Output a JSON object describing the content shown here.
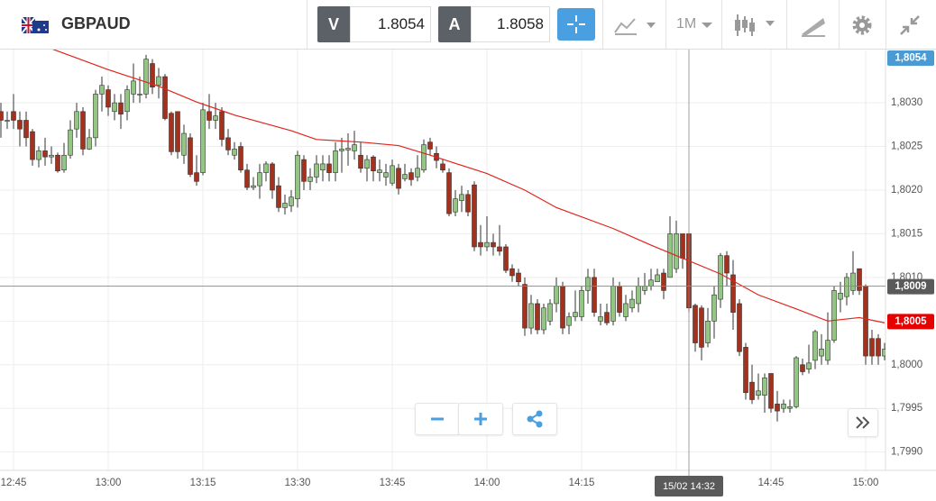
{
  "header": {
    "symbol": "GBPAUD",
    "bid_label": "V",
    "bid": "1.8054",
    "ask_label": "A",
    "ask": "1.8058",
    "timeframe": "1M"
  },
  "chart_data": {
    "type": "candlestick",
    "up_color": "#93c682",
    "down_color": "#a2311e",
    "categories": [
      null,
      null,
      "12:45",
      null,
      null,
      null,
      null,
      null,
      null,
      null,
      null,
      null,
      null,
      null,
      null,
      null,
      null,
      "13:00",
      null,
      null,
      null,
      null,
      null,
      null,
      null,
      null,
      null,
      null,
      null,
      null,
      null,
      null,
      "13:15",
      null,
      null,
      null,
      null,
      null,
      null,
      null,
      null,
      null,
      null,
      null,
      null,
      null,
      null,
      "13:30",
      null,
      null,
      null,
      null,
      null,
      null,
      null,
      null,
      null,
      null,
      null,
      null,
      null,
      null,
      "13:45",
      null,
      null,
      null,
      null,
      null,
      null,
      null,
      null,
      null,
      null,
      null,
      null,
      null,
      null,
      "14:00",
      null,
      null,
      null,
      null,
      null,
      null,
      null,
      null,
      null,
      null,
      null,
      null,
      null,
      null,
      "14:15",
      null,
      null,
      null,
      null,
      null,
      null,
      null,
      null,
      null,
      null,
      null,
      null,
      null,
      null,
      "14:30",
      null,
      null,
      null,
      null,
      null,
      null,
      null,
      null,
      null,
      null,
      null,
      null,
      null,
      null,
      "14:45",
      null,
      null,
      null,
      null,
      null,
      null,
      null,
      null,
      null,
      null,
      null,
      null,
      null,
      null,
      "15:00",
      null,
      null,
      null
    ],
    "ohlc": [
      [
        1.8029,
        1.803,
        1.8026,
        1.8028
      ],
      [
        1.8028,
        1.8029,
        1.8027,
        1.8028
      ],
      [
        1.8029,
        1.8031,
        1.8027,
        1.8028
      ],
      [
        1.8028,
        1.8029,
        1.8025,
        1.8027
      ],
      [
        1.8028,
        1.8029,
        1.8025,
        1.8026
      ],
      [
        1.80267,
        1.8027,
        1.80228,
        1.80235
      ],
      [
        1.80235,
        1.8025,
        1.80226,
        1.80245
      ],
      [
        1.80245,
        1.8026,
        1.80228,
        1.80238
      ],
      [
        1.80238,
        1.8025,
        1.8023,
        1.8024
      ],
      [
        1.8024,
        1.80243,
        1.8022,
        1.80222
      ],
      [
        1.80223,
        1.80254,
        1.8022,
        1.8024
      ],
      [
        1.8024,
        1.8028,
        1.80236,
        1.80269
      ],
      [
        1.8027,
        1.803,
        1.8026,
        1.8029
      ],
      [
        1.8029,
        1.80295,
        1.8024,
        1.80247
      ],
      [
        1.80247,
        1.8027,
        1.80246,
        1.8026
      ],
      [
        1.8026,
        1.80315,
        1.8025,
        1.8031
      ],
      [
        1.8031,
        1.8033,
        1.8029,
        1.8032
      ],
      [
        1.80315,
        1.8032,
        1.80285,
        1.80295
      ],
      [
        1.8029,
        1.8031,
        1.8028,
        1.803
      ],
      [
        1.803,
        1.8031,
        1.8027,
        1.80287
      ],
      [
        1.8029,
        1.8032,
        1.8028,
        1.80315
      ],
      [
        1.8031,
        1.80345,
        1.803,
        1.80325
      ],
      [
        1.8031,
        1.8033,
        1.803,
        1.8031
      ],
      [
        1.8031,
        1.80355,
        1.80305,
        1.8035
      ],
      [
        1.80345,
        1.8035,
        1.8031,
        1.80318
      ],
      [
        1.8032,
        1.8034,
        1.80305,
        1.8033
      ],
      [
        1.8033,
        1.80333,
        1.8028,
        1.80282
      ],
      [
        1.80288,
        1.8029,
        1.8024,
        1.80244
      ],
      [
        1.8029,
        1.8029,
        1.80236,
        1.80244
      ],
      [
        1.8024,
        1.80275,
        1.8023,
        1.80265
      ],
      [
        1.8026,
        1.80265,
        1.80215,
        1.80218
      ],
      [
        1.8022,
        1.8024,
        1.80205,
        1.8021
      ],
      [
        1.8022,
        1.803,
        1.80217,
        1.80292
      ],
      [
        1.8029,
        1.8031,
        1.8027,
        1.8028
      ],
      [
        1.8028,
        1.803,
        1.8027,
        1.80285
      ],
      [
        1.8029,
        1.80295,
        1.8025,
        1.80258
      ],
      [
        1.8026,
        1.8027,
        1.8024,
        1.80246
      ],
      [
        1.8024,
        1.80255,
        1.80235,
        1.80247
      ],
      [
        1.8025,
        1.80255,
        1.8022,
        1.80223
      ],
      [
        1.80223,
        1.8023,
        1.802,
        1.80203
      ],
      [
        1.80203,
        1.80215,
        1.802,
        1.80205
      ],
      [
        1.80205,
        1.8023,
        1.8019,
        1.8022
      ],
      [
        1.8022,
        1.80233,
        1.8021,
        1.8023
      ],
      [
        1.8023,
        1.80232,
        1.8019,
        1.802
      ],
      [
        1.80205,
        1.80215,
        1.80175,
        1.8018
      ],
      [
        1.8018,
        1.80195,
        1.80172,
        1.80185
      ],
      [
        1.80182,
        1.802,
        1.80175,
        1.80192
      ],
      [
        1.8019,
        1.80245,
        1.8018,
        1.8024
      ],
      [
        1.80235,
        1.8024,
        1.802,
        1.8021
      ],
      [
        1.8021,
        1.80225,
        1.802,
        1.80215
      ],
      [
        1.80215,
        1.8024,
        1.80208,
        1.8023
      ],
      [
        1.80223,
        1.8024,
        1.8021,
        1.8023
      ],
      [
        1.8023,
        1.8024,
        1.8021,
        1.8022
      ],
      [
        1.8022,
        1.80255,
        1.8021,
        1.80245
      ],
      [
        1.80245,
        1.8026,
        1.8022,
        1.80247
      ],
      [
        1.80246,
        1.80265,
        1.80228,
        1.80248
      ],
      [
        1.80245,
        1.80268,
        1.80235,
        1.80252
      ],
      [
        1.8024,
        1.80255,
        1.8022,
        1.80225
      ],
      [
        1.80225,
        1.8024,
        1.8021,
        1.80235
      ],
      [
        1.80238,
        1.8024,
        1.8021,
        1.80222
      ],
      [
        1.8022,
        1.80235,
        1.8021,
        1.80223
      ],
      [
        1.80215,
        1.8023,
        1.80205,
        1.8022
      ],
      [
        1.80208,
        1.80235,
        1.80205,
        1.80228
      ],
      [
        1.80225,
        1.8023,
        1.80195,
        1.80202
      ],
      [
        1.80213,
        1.8023,
        1.8021,
        1.80218
      ],
      [
        1.8022,
        1.80225,
        1.80205,
        1.80212
      ],
      [
        1.80215,
        1.8024,
        1.8021,
        1.80225
      ],
      [
        1.80223,
        1.80258,
        1.8022,
        1.80252
      ],
      [
        1.80255,
        1.8026,
        1.8024,
        1.80247
      ],
      [
        1.80242,
        1.8025,
        1.80225,
        1.80234
      ],
      [
        1.8023,
        1.80235,
        1.8022,
        1.80223
      ],
      [
        1.8022,
        1.80225,
        1.8017,
        1.80173
      ],
      [
        1.80175,
        1.802,
        1.8017,
        1.8019
      ],
      [
        1.80188,
        1.80205,
        1.80175,
        1.80195
      ],
      [
        1.80195,
        1.802,
        1.8017,
        1.80175
      ],
      [
        1.80206,
        1.8021,
        1.8013,
        1.80135
      ],
      [
        1.8014,
        1.8016,
        1.80125,
        1.80135
      ],
      [
        1.80135,
        1.8017,
        1.8013,
        1.8014
      ],
      [
        1.8014,
        1.8015,
        1.80125,
        1.80135
      ],
      [
        1.80135,
        1.8016,
        1.80125,
        1.8013
      ],
      [
        1.80135,
        1.80138,
        1.80105,
        1.80108
      ],
      [
        1.8011,
        1.80115,
        1.80095,
        1.80102
      ],
      [
        1.80105,
        1.8011,
        1.8009,
        1.80095
      ],
      [
        1.80092,
        1.801,
        1.80033,
        1.80042
      ],
      [
        1.80042,
        1.8008,
        1.80035,
        1.8007
      ],
      [
        1.8007,
        1.80075,
        1.80035,
        1.8004
      ],
      [
        1.8004,
        1.8007,
        1.80035,
        1.80065
      ],
      [
        1.8005,
        1.80075,
        1.80045,
        1.8007
      ],
      [
        1.8007,
        1.801,
        1.8006,
        1.8009
      ],
      [
        1.8009,
        1.80095,
        1.80035,
        1.80042
      ],
      [
        1.80045,
        1.8006,
        1.80035,
        1.80055
      ],
      [
        1.80055,
        1.80085,
        1.8005,
        1.8006
      ],
      [
        1.80055,
        1.8009,
        1.8005,
        1.80085
      ],
      [
        1.80085,
        1.8011,
        1.8007,
        1.801
      ],
      [
        1.801,
        1.8011,
        1.80055,
        1.8006
      ],
      [
        1.8005,
        1.8007,
        1.80045,
        1.80055
      ],
      [
        1.8006,
        1.8007,
        1.80045,
        1.80048
      ],
      [
        1.8005,
        1.801,
        1.80045,
        1.8009
      ],
      [
        1.8009,
        1.80095,
        1.80055,
        1.8006
      ],
      [
        1.80055,
        1.8008,
        1.8005,
        1.8007
      ],
      [
        1.80065,
        1.80085,
        1.8006,
        1.80075
      ],
      [
        1.8007,
        1.801,
        1.8006,
        1.8009
      ],
      [
        1.80085,
        1.80105,
        1.8008,
        1.8009
      ],
      [
        1.8009,
        1.8011,
        1.80085,
        1.80097
      ],
      [
        1.80095,
        1.8011,
        1.80095,
        1.80103
      ],
      [
        1.80105,
        1.8011,
        1.80075,
        1.80085
      ],
      [
        1.801,
        1.8017,
        1.801,
        1.8015
      ],
      [
        1.8011,
        1.80165,
        1.80105,
        1.8015
      ],
      [
        1.8015,
        1.8015,
        1.8011,
        1.80122
      ],
      [
        1.8015,
        1.8015,
        1.8006,
        1.80065
      ],
      [
        1.80068,
        1.8007,
        1.80015,
        1.80025
      ],
      [
        1.80065,
        1.80068,
        1.80005,
        1.8002
      ],
      [
        1.80025,
        1.80065,
        1.8002,
        1.8005
      ],
      [
        1.8005,
        1.8009,
        1.8003,
        1.8008
      ],
      [
        1.80075,
        1.80128,
        1.80065,
        1.80125
      ],
      [
        1.80125,
        1.8013,
        1.8009,
        1.80105
      ],
      [
        1.80103,
        1.8012,
        1.8004,
        1.8006
      ],
      [
        1.8007,
        1.80075,
        1.8001,
        1.80015
      ],
      [
        1.8002,
        1.80025,
        1.7996,
        1.79968
      ],
      [
        1.7998,
        1.8,
        1.79955,
        1.7996
      ],
      [
        1.79965,
        1.7999,
        1.7996,
        1.7997
      ],
      [
        1.79965,
        1.7999,
        1.79945,
        1.79985
      ],
      [
        1.7999,
        1.7999,
        1.79945,
        1.7995
      ],
      [
        1.79955,
        1.7997,
        1.79935,
        1.79947
      ],
      [
        1.7995,
        1.7996,
        1.79945,
        1.79955
      ],
      [
        1.7995,
        1.7996,
        1.79945,
        1.79952
      ],
      [
        1.79952,
        1.8001,
        1.7995,
        1.80008
      ],
      [
        1.8,
        1.80007,
        1.79988,
        1.79992
      ],
      [
        1.79995,
        1.80023,
        1.7999,
        1.80002
      ],
      [
        1.80005,
        1.8004,
        1.79995,
        1.80038
      ],
      [
        1.8001,
        1.80035,
        1.8,
        1.80018
      ],
      [
        1.80005,
        1.8006,
        1.8,
        1.80028
      ],
      [
        1.80028,
        1.8009,
        1.80025,
        1.80085
      ],
      [
        1.80075,
        1.80095,
        1.8006,
        1.80082
      ],
      [
        1.80078,
        1.80105,
        1.80068,
        1.801
      ],
      [
        1.80085,
        1.8013,
        1.8008,
        1.80105
      ],
      [
        1.8011,
        1.8011,
        1.8008,
        1.80085
      ],
      [
        1.8009,
        1.80092,
        1.8,
        1.8001
      ],
      [
        1.8003,
        1.8004,
        1.8,
        1.8001
      ],
      [
        1.8003,
        1.80035,
        1.8,
        1.8001
      ],
      [
        1.8001,
        1.80025,
        1.80005,
        1.80018
      ]
    ],
    "moving_average": {
      "color": "#e0241c",
      "x": [
        8,
        17,
        25,
        31,
        37,
        46,
        50,
        57,
        63,
        68,
        77,
        83,
        88,
        97,
        103,
        108,
        114,
        120,
        126,
        131,
        136,
        140
      ],
      "values": [
        1.80362,
        1.80338,
        1.80319,
        1.80301,
        1.80286,
        1.80268,
        1.80258,
        1.80255,
        1.80251,
        1.8024,
        1.80219,
        1.802,
        1.8018,
        1.80156,
        1.80137,
        1.80122,
        1.80104,
        1.8008,
        1.80064,
        1.8005,
        1.80054,
        1.80048
      ]
    },
    "ylim": [
      1.79879,
      1.80361
    ],
    "yticks": [
      {
        "value": 1.799,
        "label": "1,7990"
      },
      {
        "value": 1.7995,
        "label": "1,7995"
      },
      {
        "value": 1.8,
        "label": "1,8000"
      },
      {
        "value": 1.8005,
        "label": "1,8005"
      },
      {
        "value": 1.801,
        "label": "1,8010"
      },
      {
        "value": 1.8015,
        "label": "1,8015"
      },
      {
        "value": 1.802,
        "label": "1,8020"
      },
      {
        "value": 1.8025,
        "label": "1,8025"
      },
      {
        "value": 1.803,
        "label": "1,8030"
      }
    ],
    "grid": true,
    "price_tags": [
      {
        "value": 1.8054,
        "label": "1,8054",
        "color": "#4a9ad4"
      },
      {
        "value": 1.8005,
        "label": "1,8005",
        "color": "#e60000"
      }
    ],
    "crosshair": {
      "time_label": "15/02 14:32",
      "price": {
        "value": 1.8009,
        "label": "1,8009"
      }
    }
  }
}
